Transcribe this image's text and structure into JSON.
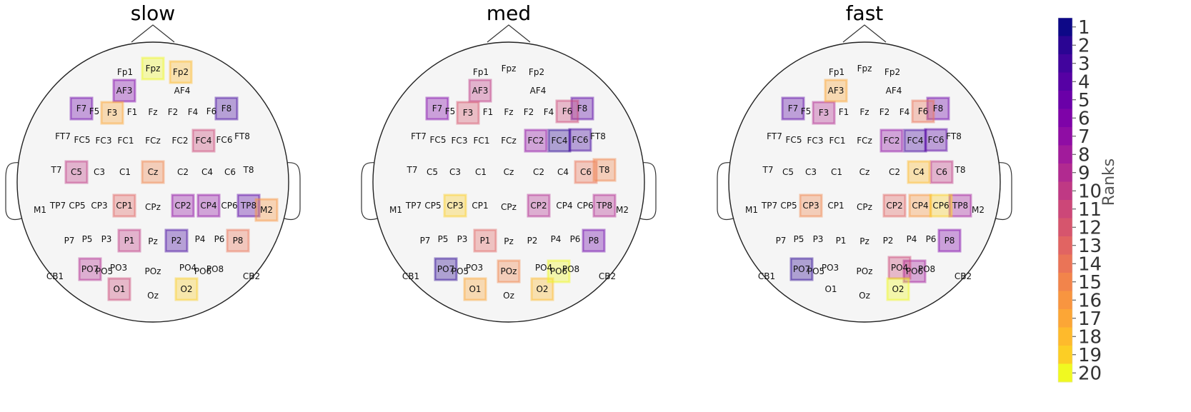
{
  "chart_data": {
    "type": "topographic-electrode-rank-map",
    "colorbar": {
      "title": "Ranks",
      "ticks": [
        "1",
        "2",
        "3",
        "4",
        "5",
        "6",
        "7",
        "8",
        "9",
        "10",
        "11",
        "12",
        "13",
        "14",
        "15",
        "16",
        "17",
        "18",
        "19",
        "20"
      ],
      "colors": [
        "#0d0887",
        "#2a0593",
        "#41049d",
        "#5601a4",
        "#6a00a8",
        "#7e03a8",
        "#8f0da4",
        "#a11b9b",
        "#b12a90",
        "#bf3984",
        "#cc4778",
        "#d6556d",
        "#e16462",
        "#ea7457",
        "#f2844b",
        "#f89540",
        "#fca636",
        "#feba2c",
        "#fcce25",
        "#f0f921"
      ]
    },
    "panels": [
      {
        "title": "slow",
        "ranked": {
          "F8": 3,
          "TP8": 4,
          "P2": 3,
          "F7": 5,
          "AF3": 6,
          "CP2": 7,
          "CP4": 7,
          "PO7": 9,
          "FC4": 11,
          "C5": 10,
          "P1": 10,
          "O1": 11,
          "CP1": 13,
          "P8": 14,
          "Cz": 15,
          "M2": 16,
          "F3": 17,
          "Fp2": 18,
          "O2": 19,
          "Fpz": 20
        }
      },
      {
        "title": "med",
        "ranked": {
          "FC4": 2,
          "PO7": 2,
          "FC6": 3,
          "F8": 4,
          "P8": 5,
          "F7": 6,
          "FC2": 7,
          "CP2": 9,
          "TP8": 9,
          "AF3": 10,
          "F6": 11,
          "F3": 12,
          "P1": 13,
          "C6": 14,
          "T8": 15,
          "POz": 15,
          "O1": 17,
          "O2": 18,
          "CP3": 19,
          "PO6": 20
        }
      },
      {
        "title": "fast",
        "ranked": {
          "PO7": 2,
          "FC4": 3,
          "F7": 4,
          "FC6": 4,
          "F8": 5,
          "P8": 6,
          "FC2": 7,
          "TP8": 8,
          "PO6": 8,
          "F3": 9,
          "C6": 10,
          "PO4": 11,
          "CP2": 13,
          "F6": 14,
          "CP3": 15,
          "CP4": 16,
          "AF3": 17,
          "C4": 18,
          "CP6": 19,
          "O2": 20
        }
      }
    ],
    "electrode_labels": [
      "Fp1",
      "Fpz",
      "Fp2",
      "AF3",
      "AF4",
      "F7",
      "F5",
      "F3",
      "F1",
      "Fz",
      "F2",
      "F4",
      "F6",
      "F8",
      "FT7",
      "FC5",
      "FC3",
      "FC1",
      "FCz",
      "FC2",
      "FC4",
      "FC6",
      "FT8",
      "T7",
      "C5",
      "C3",
      "C1",
      "Cz",
      "C2",
      "C4",
      "C6",
      "T8",
      "M1",
      "TP7",
      "CP5",
      "CP3",
      "CP1",
      "CPz",
      "CP2",
      "CP4",
      "CP6",
      "TP8",
      "M2",
      "P7",
      "P5",
      "P3",
      "P1",
      "Pz",
      "P2",
      "P4",
      "P6",
      "P8",
      "CB1",
      "PO7",
      "PO5",
      "PO3",
      "POz",
      "PO4",
      "PO6",
      "PO8",
      "CB2",
      "O1",
      "Oz",
      "O2"
    ]
  }
}
